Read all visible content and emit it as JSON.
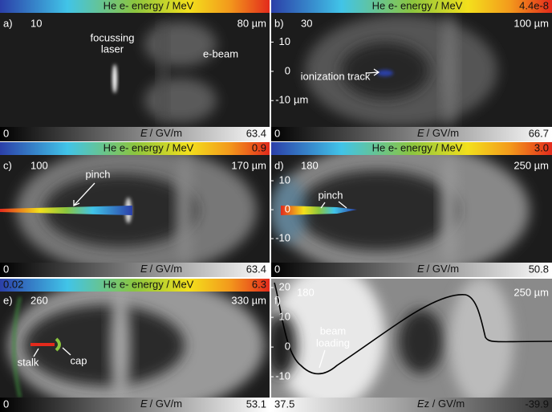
{
  "panels": [
    {
      "label": "a)",
      "time": "10",
      "window": "80 µm",
      "colorbar": {
        "title": "He e- energy / MeV"
      },
      "field": {
        "symbol": "E",
        "unit": "/ GV/m",
        "min": "0",
        "max": "63.4"
      },
      "annotations": [
        "focussing",
        "laser",
        "e-beam"
      ]
    },
    {
      "label": "b)",
      "time": "30",
      "window": "100 µm",
      "colorbar": {
        "title": "He e- energy / MeV",
        "max": "4.4e-8"
      },
      "field": {
        "symbol": "E",
        "unit": "/ GV/m",
        "min": "0",
        "max": "66.7"
      },
      "yaxis": {
        "ylim": [
          -19,
          20
        ],
        "yticks": [
          10,
          0,
          -10
        ],
        "unit": "µm"
      },
      "annotations": [
        "ionization track"
      ]
    },
    {
      "label": "c)",
      "time": "100",
      "window": "170 µm",
      "colorbar": {
        "title": "He e- energy / MeV",
        "max": "0.9"
      },
      "field": {
        "symbol": "E",
        "unit": "/ GV/m",
        "min": "0",
        "max": "63.4"
      },
      "annotations": [
        "pinch"
      ]
    },
    {
      "label": "d)",
      "time": "180",
      "window": "250 µm",
      "colorbar": {
        "title": "He e- energy / MeV",
        "max": "3.0"
      },
      "field": {
        "symbol": "E",
        "unit": "/ GV/m",
        "min": "0",
        "max": "50.8"
      },
      "yaxis": {
        "ylim": [
          -18.3,
          18.9
        ],
        "yticks": [
          10,
          0,
          -10
        ]
      },
      "annotations": [
        "pinch"
      ]
    },
    {
      "label": "e)",
      "time": "260",
      "window": "330 µm",
      "colorbar": {
        "title": "He e- energy / MeV",
        "min": "0.02",
        "max": "6.3"
      },
      "field": {
        "symbol": "E",
        "unit": "/ GV/m",
        "min": "0",
        "max": "53.1"
      },
      "annotations": [
        "stalk",
        "cap"
      ]
    },
    {
      "label": "f)",
      "time": "180",
      "window": "250 µm",
      "field": {
        "symbol": "E",
        "unit": "z / GV/m",
        "min": "37.5",
        "max": "-39.9"
      },
      "yaxis": {
        "ylim": [
          -17,
          23
        ],
        "yticks": [
          20,
          10,
          0,
          -10
        ]
      },
      "annotations": [
        "beam",
        "loading"
      ]
    }
  ]
}
